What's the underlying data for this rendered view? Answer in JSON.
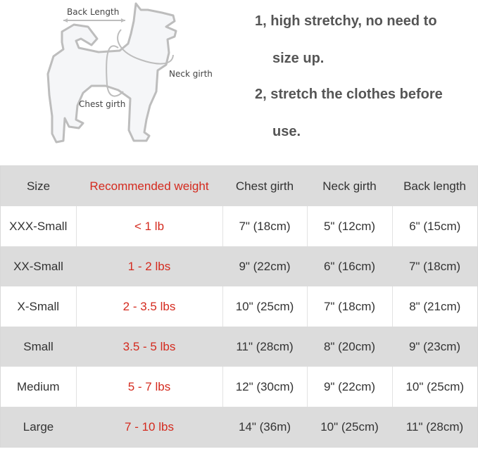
{
  "diagram": {
    "labels": {
      "back_length": "Back Length",
      "neck_girth": "Neck girth",
      "chest_girth": "Chest girth"
    }
  },
  "notes": [
    {
      "line1": "1, high stretchy, no need to",
      "line2": "size up."
    },
    {
      "line1": "2, stretch the clothes before",
      "line2": "use."
    }
  ],
  "colors": {
    "accent_red": "#d42a1e",
    "row_gray": "#dcdcdc"
  },
  "table": {
    "headers": [
      "Size",
      "Recommended weight",
      "Chest girth",
      "Neck girth",
      "Back length"
    ],
    "rows": [
      [
        "XXX-Small",
        "< 1 lb",
        "7\" (18cm)",
        "5\" (12cm)",
        "6\" (15cm)"
      ],
      [
        "XX-Small",
        "1 - 2 lbs",
        "9\" (22cm)",
        "6\" (16cm)",
        "7\" (18cm)"
      ],
      [
        "X-Small",
        "2 - 3.5 lbs",
        "10\" (25cm)",
        "7\" (18cm)",
        "8\" (21cm)"
      ],
      [
        "Small",
        "3.5 - 5 lbs",
        "11\" (28cm)",
        "8\" (20cm)",
        "9\" (23cm)"
      ],
      [
        "Medium",
        "5 - 7 lbs",
        "12\" (30cm)",
        "9\" (22cm)",
        "10\" (25cm)"
      ],
      [
        "Large",
        "7 - 10 lbs",
        "14\" (36m)",
        "10\" (25cm)",
        "11\" (28cm)"
      ]
    ]
  }
}
